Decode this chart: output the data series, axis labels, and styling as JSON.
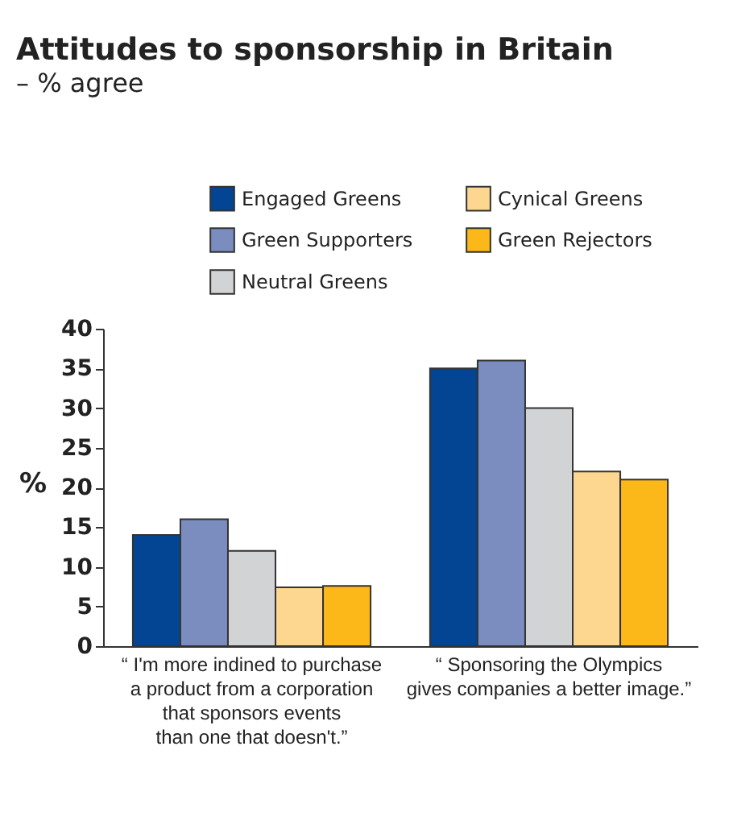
{
  "chart_data": {
    "type": "bar",
    "title": "Attitudes to sponsorship in Britain",
    "subtitle": "– % agree",
    "ylabel": "%",
    "categories": [
      "“ I'm more indined to purchase\na product from a corporation\nthat sponsors events\nthan one that doesn't.”",
      "“ Sponsoring the Olympics\ngives companies a better image.”"
    ],
    "series": [
      {
        "name": "Engaged Greens",
        "color": "#034592",
        "values": [
          14,
          35
        ]
      },
      {
        "name": "Green Supporters",
        "color": "#7b8cbf",
        "values": [
          16,
          36
        ]
      },
      {
        "name": "Neutral Greens",
        "color": "#d2d3d5",
        "values": [
          12,
          30
        ]
      },
      {
        "name": "Cynical Greens",
        "color": "#fdd68f",
        "values": [
          7.4,
          22
        ]
      },
      {
        "name": "Green Rejectors",
        "color": "#fbb818",
        "values": [
          7.6,
          21
        ]
      }
    ],
    "ylim": [
      0,
      40
    ],
    "yticks": [
      0,
      5,
      10,
      15,
      20,
      25,
      30,
      35,
      40
    ],
    "grid": false,
    "legend": "top"
  }
}
